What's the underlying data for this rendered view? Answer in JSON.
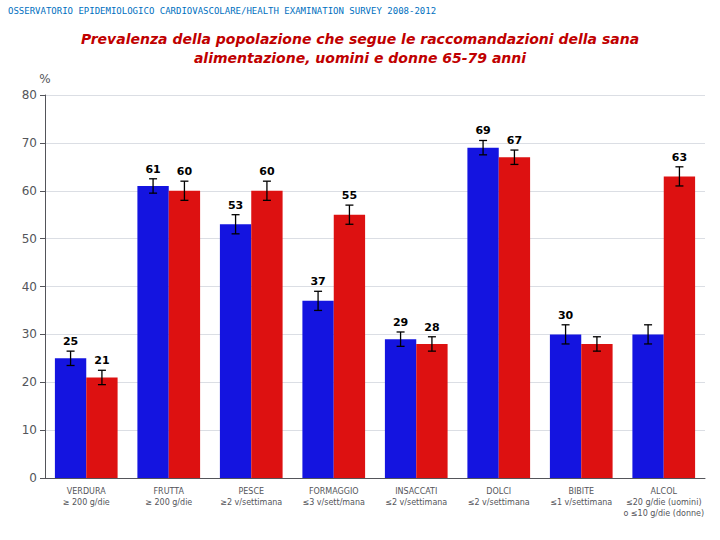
{
  "chart_data": {
    "type": "bar",
    "title": "Prevalenza della popolazione che segue le raccomandazioni della sana\nalimentazione, uomini e donne 65-79 anni",
    "annotations": [
      "OSSERVATORIO EPIDEMIOLOGICO CARDIOVASCOLARE/HEALTH EXAMINATION SURVEY 2008-2012"
    ],
    "ylabel": "%",
    "categories": [
      "VERDURA\n≥ 200 g/die",
      "FRUTTA\n≥ 200 g/die",
      "PESCE\n≥2 v/settimana",
      "FORMAGGIO\n≤3 v/sett/mana",
      "INSACCATI\n≤2 v/settimana",
      "DOLCI\n≤2 v/settimana",
      "BIBITE\n≤1 v/settimana",
      "ALCOL\n≤20 g/die (uomini)\no ≤10 g/die (donne)"
    ],
    "series": [
      {
        "color": "#1414e0",
        "values": [
          25,
          61,
          53,
          37,
          29,
          69,
          30,
          30
        ],
        "errors": [
          1.5,
          1.5,
          2.0,
          2.0,
          1.5,
          1.5,
          2.0,
          2.0
        ],
        "value_labels": [
          "25",
          "61",
          "53",
          "37",
          "29",
          "69",
          "30",
          null
        ]
      },
      {
        "color": "#dd1111",
        "values": [
          21,
          60,
          60,
          55,
          28,
          67,
          28,
          63
        ],
        "errors": [
          1.5,
          2.0,
          2.0,
          2.0,
          1.5,
          1.5,
          1.5,
          2.0
        ],
        "value_labels": [
          "21",
          "60",
          "60",
          "55",
          "28",
          "67",
          null,
          "63"
        ]
      }
    ],
    "ylim": [
      0,
      80
    ],
    "yticks": [
      0,
      10,
      20,
      30,
      40,
      50,
      60,
      70,
      80
    ],
    "grid": true,
    "data_labels": true
  }
}
